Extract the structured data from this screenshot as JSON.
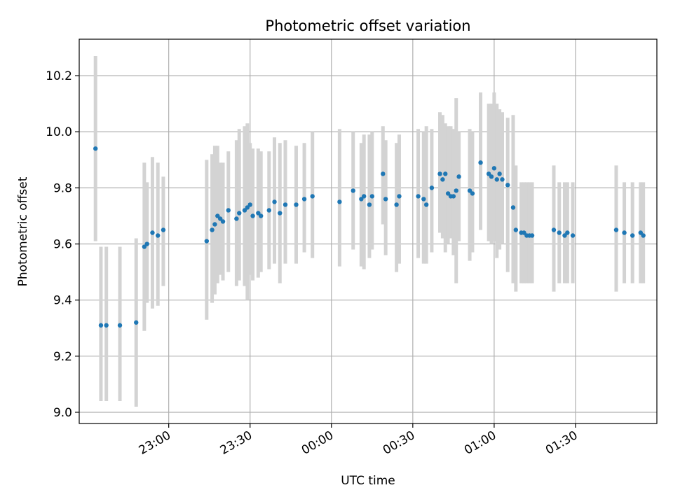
{
  "chart_data": {
    "type": "scatter",
    "title": "Photometric offset variation",
    "xlabel": "UTC time",
    "ylabel": "Photometric offset",
    "x_ticks": [
      "23:00",
      "23:30",
      "00:00",
      "00:30",
      "01:00",
      "01:30"
    ],
    "y_ticks": [
      "9.0",
      "9.2",
      "9.4",
      "9.6",
      "9.8",
      "10.0",
      "10.2"
    ],
    "grid": true,
    "colors": {
      "points": "#1f77b4",
      "error_bars": "#d3d3d3",
      "grid": "#b0b0b0"
    },
    "series": [
      {
        "x": [
          "22:33",
          "22:35",
          "22:37",
          "22:42",
          "22:48",
          "22:51",
          "22:52",
          "22:54",
          "22:56",
          "22:58",
          "23:14",
          "23:16",
          "23:17",
          "23:18",
          "23:19",
          "23:20",
          "23:22",
          "23:25",
          "23:26",
          "23:28",
          "23:29",
          "23:30",
          "23:31",
          "23:33",
          "23:34",
          "23:37",
          "23:39",
          "23:41",
          "23:43",
          "23:47",
          "23:50",
          "23:53",
          "24:03",
          "24:08",
          "24:11",
          "24:12",
          "24:14",
          "24:15",
          "24:19",
          "24:20",
          "24:24",
          "24:25",
          "24:32",
          "24:34",
          "24:35",
          "24:37",
          "24:40",
          "24:41",
          "24:42",
          "24:43",
          "24:44",
          "24:45",
          "24:46",
          "24:47",
          "24:51",
          "24:52",
          "24:55",
          "24:58",
          "24:59",
          "25:00",
          "25:01",
          "25:02",
          "25:03",
          "25:05",
          "25:07",
          "25:08",
          "25:10",
          "25:11",
          "25:12",
          "25:13",
          "25:14",
          "25:22",
          "25:24",
          "25:26",
          "25:27",
          "25:29",
          "25:45",
          "25:48",
          "25:51",
          "25:54",
          "25:55"
        ],
        "y": [
          9.94,
          9.31,
          9.31,
          9.31,
          9.32,
          9.59,
          9.6,
          9.64,
          9.63,
          9.65,
          9.61,
          9.65,
          9.67,
          9.7,
          9.69,
          9.68,
          9.72,
          9.69,
          9.71,
          9.72,
          9.73,
          9.74,
          9.7,
          9.71,
          9.7,
          9.72,
          9.75,
          9.71,
          9.74,
          9.74,
          9.76,
          9.77,
          9.75,
          9.79,
          9.76,
          9.77,
          9.74,
          9.77,
          9.85,
          9.76,
          9.74,
          9.77,
          9.77,
          9.76,
          9.74,
          9.8,
          9.85,
          9.83,
          9.85,
          9.78,
          9.77,
          9.77,
          9.79,
          9.84,
          9.79,
          9.78,
          9.89,
          9.85,
          9.84,
          9.87,
          9.83,
          9.85,
          9.83,
          9.81,
          9.73,
          9.65,
          9.64,
          9.64,
          9.63,
          9.63,
          9.63,
          9.65,
          9.64,
          9.63,
          9.64,
          9.63,
          9.65,
          9.64,
          9.63,
          9.64,
          9.63
        ],
        "yerr_low": [
          9.61,
          9.04,
          9.04,
          9.04,
          9.02,
          9.29,
          9.39,
          9.37,
          9.38,
          9.45,
          9.33,
          9.39,
          9.42,
          9.46,
          9.49,
          9.47,
          9.5,
          9.45,
          9.47,
          9.45,
          9.4,
          9.49,
          9.47,
          9.48,
          9.5,
          9.51,
          9.53,
          9.46,
          9.53,
          9.53,
          9.57,
          9.55,
          9.52,
          9.58,
          9.52,
          9.51,
          9.55,
          9.58,
          9.67,
          9.56,
          9.5,
          9.53,
          9.55,
          9.53,
          9.53,
          9.57,
          9.64,
          9.62,
          9.57,
          9.6,
          9.62,
          9.56,
          9.46,
          9.61,
          9.54,
          9.57,
          9.65,
          9.61,
          9.6,
          9.61,
          9.55,
          9.58,
          9.6,
          9.5,
          9.46,
          9.43,
          9.46,
          9.46,
          9.46,
          9.46,
          9.46,
          9.43,
          9.46,
          9.46,
          9.46,
          9.46,
          9.43,
          9.46,
          9.46,
          9.46,
          9.46
        ],
        "yerr_high": [
          10.27,
          9.59,
          9.59,
          9.59,
          9.62,
          9.89,
          9.82,
          9.91,
          9.89,
          9.84,
          9.9,
          9.92,
          9.95,
          9.95,
          9.89,
          9.89,
          9.93,
          9.97,
          10.01,
          10.02,
          10.03,
          9.96,
          9.94,
          9.94,
          9.93,
          9.93,
          9.98,
          9.96,
          9.97,
          9.95,
          9.96,
          10.0,
          10.01,
          10.0,
          9.96,
          9.99,
          9.99,
          10.0,
          10.02,
          9.97,
          9.96,
          9.99,
          10.01,
          10.0,
          10.02,
          10.01,
          10.07,
          10.06,
          10.03,
          10.02,
          10.02,
          10.01,
          10.12,
          10.0,
          10.01,
          10.0,
          10.14,
          10.1,
          10.1,
          10.14,
          10.1,
          10.08,
          10.07,
          10.05,
          10.06,
          9.88,
          9.82,
          9.82,
          9.82,
          9.82,
          9.82,
          9.88,
          9.82,
          9.82,
          9.82,
          9.82,
          9.88,
          9.82,
          9.82,
          9.82,
          9.82
        ]
      }
    ]
  }
}
